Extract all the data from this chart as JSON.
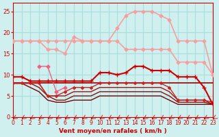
{
  "x": [
    0,
    1,
    2,
    3,
    4,
    5,
    6,
    7,
    8,
    9,
    10,
    11,
    12,
    13,
    14,
    15,
    16,
    17,
    18,
    19,
    20,
    21,
    22,
    23
  ],
  "series": [
    {
      "y": [
        18,
        18,
        18,
        18,
        18,
        18,
        18,
        18,
        18,
        18,
        18,
        18,
        21,
        24,
        25,
        25,
        25,
        24,
        23,
        18,
        18,
        18,
        18,
        10
      ],
      "color": "#f4a0a0",
      "lw": 1.2,
      "marker": "D",
      "ms": 2.5,
      "zorder": 3
    },
    {
      "y": [
        18,
        18,
        18,
        18,
        16,
        16,
        15,
        19,
        18,
        18,
        18,
        18,
        18,
        16,
        16,
        16,
        16,
        16,
        16,
        13,
        13,
        13,
        13,
        10
      ],
      "color": "#f4a0a0",
      "lw": 1.2,
      "marker": "D",
      "ms": 2.5,
      "zorder": 3
    },
    {
      "y": [
        null,
        null,
        null,
        12,
        12,
        6,
        7,
        null,
        null,
        null,
        null,
        null,
        null,
        null,
        null,
        null,
        null,
        null,
        null,
        null,
        null,
        null,
        null,
        null
      ],
      "color": "#f06080",
      "lw": 1.0,
      "marker": "D",
      "ms": 2.5,
      "zorder": 3
    },
    {
      "y": [
        9.5,
        9.5,
        8.5,
        8.5,
        8.5,
        8.5,
        8.5,
        8.5,
        8.5,
        8.5,
        10.5,
        10.5,
        10,
        10.5,
        12,
        12,
        11,
        11,
        11,
        9.5,
        9.5,
        9.5,
        7,
        3
      ],
      "color": "#cc0000",
      "lw": 1.5,
      "marker": "+",
      "ms": 4,
      "zorder": 4
    },
    {
      "y": [
        8,
        8,
        8,
        8,
        8,
        8,
        8,
        8,
        8,
        8,
        8,
        8,
        8,
        8,
        8,
        8,
        8,
        8,
        8,
        8,
        8,
        8,
        8,
        8
      ],
      "color": "#990000",
      "lw": 1.2,
      "marker": null,
      "ms": 0,
      "zorder": 2
    },
    {
      "y": [
        8,
        8,
        8,
        8,
        5,
        5,
        6,
        7,
        7,
        7,
        8,
        8,
        8,
        8,
        8,
        8,
        8,
        8,
        7,
        4,
        4,
        4,
        4,
        3.5
      ],
      "color": "#cc2222",
      "lw": 1.0,
      "marker": "D",
      "ms": 2,
      "zorder": 3
    },
    {
      "y": [
        8,
        8,
        8,
        8,
        5,
        5,
        5,
        6,
        6,
        6,
        7,
        7,
        7,
        7,
        7,
        7,
        7,
        7,
        6,
        4,
        4,
        4,
        4,
        3
      ],
      "color": "#aa1111",
      "lw": 1.0,
      "marker": null,
      "ms": 0,
      "zorder": 2
    },
    {
      "y": [
        8,
        8,
        8,
        7,
        5,
        4,
        4,
        5,
        5,
        5,
        6,
        6,
        6,
        6,
        6,
        6,
        6,
        6,
        5,
        3.5,
        3.5,
        3.5,
        3.5,
        3
      ],
      "color": "#881111",
      "lw": 1.0,
      "marker": null,
      "ms": 0,
      "zorder": 2
    },
    {
      "y": [
        8,
        8,
        7,
        6,
        4,
        3.5,
        3.5,
        4,
        4,
        4,
        5,
        5,
        5,
        5,
        5,
        5,
        5,
        5,
        4,
        3,
        3,
        3,
        3,
        3
      ],
      "color": "#770000",
      "lw": 1.0,
      "marker": null,
      "ms": 0,
      "zorder": 2
    }
  ],
  "bg_color": "#cff0ee",
  "grid_color": "#aadddd",
  "xlabel": "Vent moyen/en rafales ( km/h )",
  "xlabel_color": "#cc0000",
  "tick_color": "#cc0000",
  "axis_color": "#cc0000",
  "ylim": [
    0,
    27
  ],
  "xlim": [
    0,
    23
  ],
  "yticks": [
    0,
    5,
    10,
    15,
    20,
    25
  ],
  "xticks": [
    0,
    1,
    2,
    3,
    4,
    5,
    6,
    7,
    8,
    9,
    10,
    11,
    12,
    13,
    14,
    15,
    16,
    17,
    18,
    19,
    20,
    21,
    22,
    23
  ]
}
